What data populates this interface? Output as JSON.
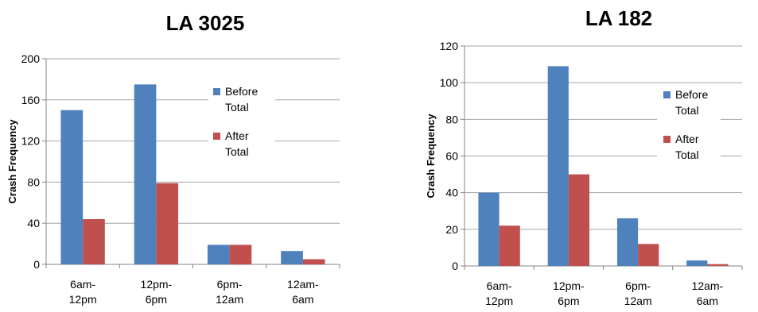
{
  "chart_data": [
    {
      "type": "bar",
      "title": "LA 3025",
      "ylabel": "Crash Frequency",
      "xlabel": "",
      "ylim": [
        0,
        200
      ],
      "yticks": [
        0,
        40,
        80,
        120,
        160,
        200
      ],
      "categories": [
        [
          "6am-",
          "12pm"
        ],
        [
          "12pm-",
          "6pm"
        ],
        [
          "6pm-",
          "12am"
        ],
        [
          "12am-",
          "6am"
        ]
      ],
      "series": [
        {
          "name": [
            "Before",
            "Total"
          ],
          "color": "#4f81bd",
          "values": [
            150,
            175,
            19,
            13
          ]
        },
        {
          "name": [
            "After",
            "Total"
          ],
          "color": "#c0504d",
          "values": [
            44,
            79,
            19,
            5
          ]
        }
      ],
      "legend": "right",
      "grid": true
    },
    {
      "type": "bar",
      "title": "LA 182",
      "ylabel": "Crash Frequency",
      "xlabel": "",
      "ylim": [
        0,
        120
      ],
      "yticks": [
        0,
        20,
        40,
        60,
        80,
        100,
        120
      ],
      "categories": [
        [
          "6am-",
          "12pm"
        ],
        [
          "12pm-",
          "6pm"
        ],
        [
          "6pm-",
          "12am"
        ],
        [
          "12am-",
          "6am"
        ]
      ],
      "series": [
        {
          "name": [
            "Before",
            "Total"
          ],
          "color": "#4f81bd",
          "values": [
            40,
            109,
            26,
            3
          ]
        },
        {
          "name": [
            "After",
            "Total"
          ],
          "color": "#c0504d",
          "values": [
            22,
            50,
            12,
            1
          ]
        }
      ],
      "legend": "right",
      "grid": true
    }
  ]
}
